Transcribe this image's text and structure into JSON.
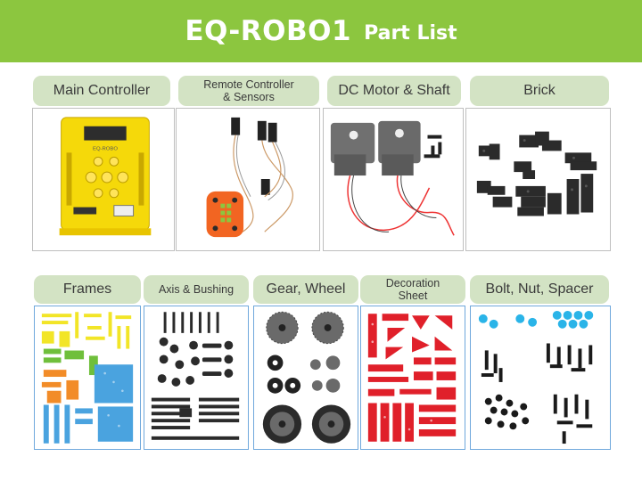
{
  "header": {
    "title": "EQ-ROBO1",
    "subtitle": "Part List"
  },
  "parts": [
    {
      "label": "Main Controller"
    },
    {
      "label": "Remote Controller & Sensors",
      "line1": "Remote Controller",
      "line2": "& Sensors"
    },
    {
      "label": "DC Motor & Shaft"
    },
    {
      "label": "Brick"
    },
    {
      "label": "Frames"
    },
    {
      "label": "Axis & Bushing"
    },
    {
      "label": "Gear, Wheel"
    },
    {
      "label": "Decoration Sheet",
      "line1": "Decoration",
      "line2": "Sheet"
    },
    {
      "label": "Bolt, Nut, Spacer"
    }
  ],
  "controller_brand": "EQ-ROBO",
  "colors": {
    "banner": "#8cc63f",
    "label_bg": "#d3e3c4",
    "controller": "#f5d90a",
    "remote": "#f26522",
    "frame_blue": "#4aa3df",
    "frame_yellow": "#f2e527",
    "frame_green": "#6fbf3b",
    "frame_orange": "#f28c28",
    "decoration_red": "#e0202a",
    "spacer_cyan": "#2ab4e8",
    "part_dark": "#2b2b2b"
  }
}
